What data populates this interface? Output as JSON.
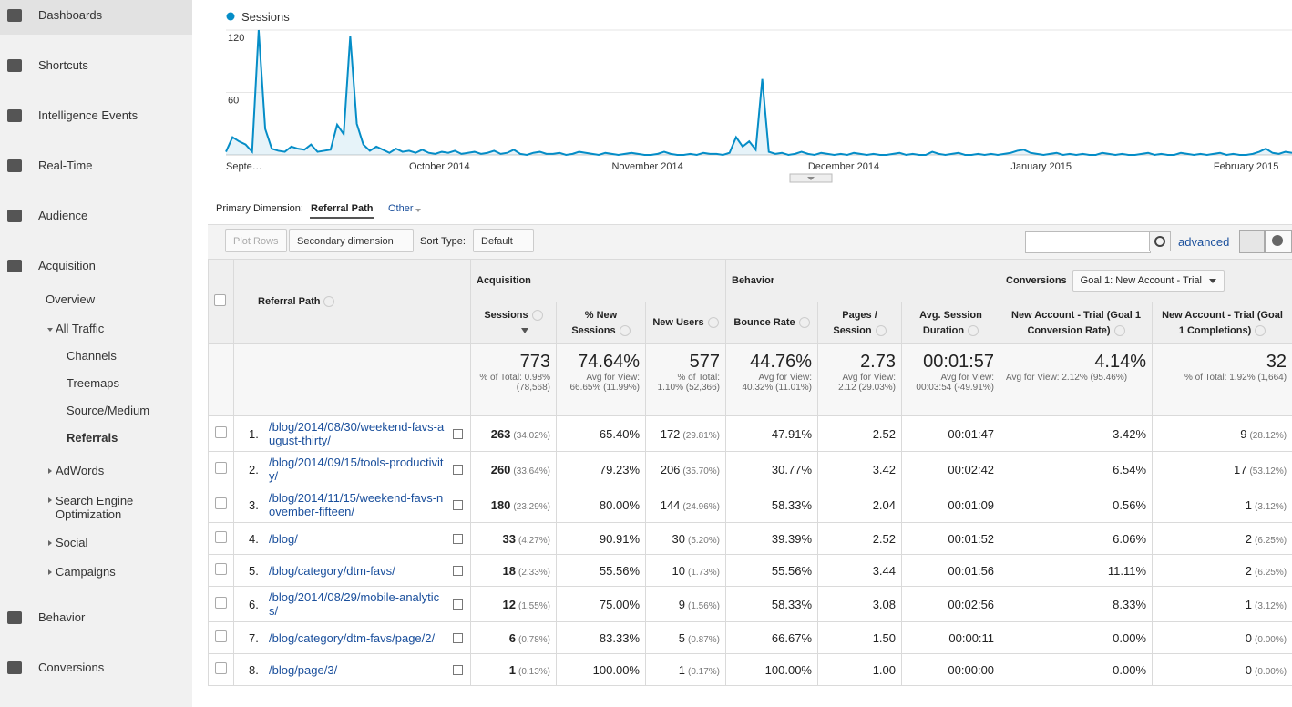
{
  "nav": {
    "main": [
      "Dashboards",
      "Shortcuts",
      "Intelligence Events",
      "Real-Time",
      "Audience",
      "Acquisition"
    ],
    "acquisition": [
      "Overview",
      "All Traffic",
      "Channels",
      "Treemaps",
      "Source/Medium",
      "Referrals",
      "AdWords",
      "Search Engine Optimization",
      "Social",
      "Campaigns"
    ],
    "more": [
      "Behavior",
      "Conversions"
    ]
  },
  "chart_data": {
    "type": "line",
    "categories": [
      "Septe…",
      null,
      null,
      null,
      null,
      null,
      null,
      null,
      null,
      null,
      null,
      null,
      null,
      null,
      null,
      null,
      null,
      null,
      null,
      null,
      null,
      null,
      null,
      null,
      null,
      null,
      null,
      null,
      "October 2014",
      null,
      null,
      null,
      null,
      null,
      null,
      null,
      null,
      null,
      null,
      null,
      null,
      null,
      null,
      null,
      null,
      null,
      null,
      null,
      null,
      null,
      null,
      null,
      null,
      null,
      null,
      null,
      null,
      null,
      null,
      "November 2014",
      null,
      null,
      null,
      null,
      null,
      null,
      null,
      null,
      null,
      null,
      null,
      null,
      null,
      null,
      null,
      null,
      null,
      null,
      null,
      null,
      null,
      null,
      null,
      null,
      null,
      null,
      null,
      null,
      null,
      "December 2014",
      null,
      null,
      null,
      null,
      null,
      null,
      null,
      null,
      null,
      null,
      null,
      null,
      null,
      null,
      null,
      null,
      null,
      null,
      null,
      null,
      null,
      null,
      null,
      null,
      null,
      null,
      null,
      null,
      null,
      null,
      "January 2015",
      null,
      null,
      null,
      null,
      null,
      null,
      null,
      null,
      null,
      null,
      null,
      null,
      null,
      null,
      null,
      null,
      null,
      null,
      null,
      null,
      null,
      null,
      null,
      null,
      null,
      null,
      null,
      null,
      null,
      null,
      "February 2015",
      null,
      null,
      null,
      null,
      null,
      null,
      null,
      null,
      null,
      null,
      null,
      null
    ],
    "series": [
      {
        "name": "Sessions",
        "color": "#058dc7",
        "values": [
          3,
          17,
          13,
          10,
          3,
          120,
          25,
          6,
          4,
          3,
          8,
          6,
          5,
          10,
          3,
          4,
          5,
          29,
          20,
          114,
          30,
          10,
          4,
          8,
          5,
          2,
          6,
          3,
          4,
          2,
          5,
          2,
          1,
          3,
          2,
          4,
          1,
          2,
          3,
          1,
          2,
          4,
          1,
          2,
          5,
          1,
          0,
          2,
          3,
          1,
          1,
          2,
          0,
          1,
          3,
          2,
          1,
          0,
          2,
          1,
          0,
          1,
          2,
          1,
          0,
          0,
          1,
          3,
          1,
          0,
          0,
          1,
          0,
          2,
          1,
          1,
          0,
          2,
          17,
          8,
          13,
          5,
          73,
          3,
          1,
          2,
          0,
          1,
          3,
          1,
          0,
          2,
          1,
          0,
          1,
          0,
          2,
          1,
          0,
          1,
          0,
          0,
          1,
          2,
          0,
          1,
          0,
          0,
          3,
          1,
          0,
          1,
          2,
          0,
          0,
          1,
          0,
          1,
          0,
          1,
          2,
          4,
          5,
          2,
          1,
          0,
          1,
          2,
          0,
          1,
          0,
          1,
          0,
          0,
          2,
          1,
          0,
          1,
          0,
          0,
          1,
          2,
          0,
          1,
          0,
          0,
          2,
          1,
          0,
          1,
          0,
          1,
          2,
          0,
          1,
          0,
          0,
          1,
          3,
          6,
          2,
          1,
          3,
          2
        ]
      }
    ],
    "ylim": [
      0,
      120
    ],
    "yticks": [
      60,
      120
    ],
    "grid": true
  },
  "dimension": {
    "label": "Primary Dimension:",
    "value": "Referral Path",
    "other": "Other"
  },
  "toolbar": {
    "plot_rows": "Plot Rows",
    "secondary": "Secondary dimension",
    "sort_label": "Sort Type:",
    "sort": "Default",
    "advanced": "advanced"
  },
  "table": {
    "groups": [
      "Acquisition",
      "Behavior",
      "Conversions"
    ],
    "goal": "Goal 1: New Account - Trial",
    "columns": [
      "Referral Path",
      "Sessions",
      "% New Sessions",
      "New Users",
      "Bounce Rate",
      "Pages / Session",
      "Avg. Session Duration",
      "New Account - Trial (Goal 1 Conversion Rate)",
      "New Account - Trial (Goal 1 Completions)"
    ],
    "totals": [
      {
        "value": "773",
        "note": "% of Total: 0.98% (78,568)"
      },
      {
        "value": "74.64%",
        "note": "Avg for View: 66.65% (11.99%)"
      },
      {
        "value": "577",
        "note": "% of Total: 1.10% (52,366)"
      },
      {
        "value": "44.76%",
        "note": "Avg for View: 40.32% (11.01%)"
      },
      {
        "value": "2.73",
        "note": "Avg for View: 2.12 (29.03%)"
      },
      {
        "value": "00:01:57",
        "note": "Avg for View: 00:03:54 (-49.91%)"
      },
      {
        "value": "4.14%",
        "note": "Avg for View: 2.12% (95.46%)"
      },
      {
        "value": "32",
        "note": "% of Total: 1.92% (1,664)"
      }
    ],
    "rows": [
      [
        "1.",
        "/blog/2014/08/30/weekend-favs-august-thirty/",
        "263",
        "(34.02%)",
        "65.40%",
        "172",
        "(29.81%)",
        "47.91%",
        "2.52",
        "00:01:47",
        "3.42%",
        "9",
        "(28.12%)"
      ],
      [
        "2.",
        "/blog/2014/09/15/tools-productivity/",
        "260",
        "(33.64%)",
        "79.23%",
        "206",
        "(35.70%)",
        "30.77%",
        "3.42",
        "00:02:42",
        "6.54%",
        "17",
        "(53.12%)"
      ],
      [
        "3.",
        "/blog/2014/11/15/weekend-favs-november-fifteen/",
        "180",
        "(23.29%)",
        "80.00%",
        "144",
        "(24.96%)",
        "58.33%",
        "2.04",
        "00:01:09",
        "0.56%",
        "1",
        "(3.12%)"
      ],
      [
        "4.",
        "/blog/",
        "33",
        "(4.27%)",
        "90.91%",
        "30",
        "(5.20%)",
        "39.39%",
        "2.52",
        "00:01:52",
        "6.06%",
        "2",
        "(6.25%)"
      ],
      [
        "5.",
        "/blog/category/dtm-favs/",
        "18",
        "(2.33%)",
        "55.56%",
        "10",
        "(1.73%)",
        "55.56%",
        "3.44",
        "00:01:56",
        "11.11%",
        "2",
        "(6.25%)"
      ],
      [
        "6.",
        "/blog/2014/08/29/mobile-analytics/",
        "12",
        "(1.55%)",
        "75.00%",
        "9",
        "(1.56%)",
        "58.33%",
        "3.08",
        "00:02:56",
        "8.33%",
        "1",
        "(3.12%)"
      ],
      [
        "7.",
        "/blog/category/dtm-favs/page/2/",
        "6",
        "(0.78%)",
        "83.33%",
        "5",
        "(0.87%)",
        "66.67%",
        "1.50",
        "00:00:11",
        "0.00%",
        "0",
        "(0.00%)"
      ],
      [
        "8.",
        "/blog/page/3/",
        "1",
        "(0.13%)",
        "100.00%",
        "1",
        "(0.17%)",
        "100.00%",
        "1.00",
        "00:00:00",
        "0.00%",
        "0",
        "(0.00%)"
      ]
    ]
  }
}
